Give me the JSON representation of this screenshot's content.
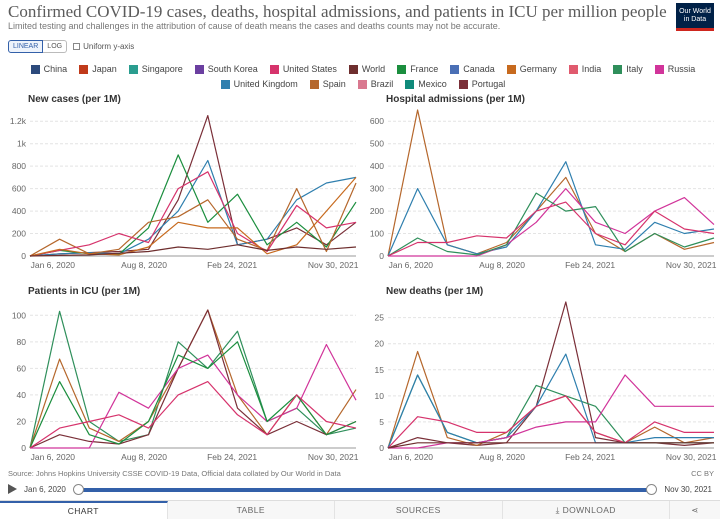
{
  "header": {
    "title": "Confirmed COVID-19 cases, deaths, hospital admissions, and patients in ICU per million people",
    "subtitle": "Limited testing and challenges in the attribution of cause of death means the cases and deaths counts may not be accurate.",
    "logo_line1": "Our World",
    "logo_line2": "in Data"
  },
  "controls": {
    "linear": "LINEAR",
    "log": "LOG",
    "uniform": "Uniform y-axis"
  },
  "colors": {
    "China": "#2c4a7c",
    "Japan": "#c03a1a",
    "Singapore": "#2a9d8f",
    "South Korea": "#6b3fa0",
    "United States": "#d6336c",
    "World": "#6e2e2e",
    "France": "#1b8e3e",
    "Canada": "#4a6fb5",
    "Germany": "#c76a1e",
    "India": "#e05a6e",
    "Italy": "#2f8f5b",
    "Russia": "#d1349a",
    "United Kingdom": "#2f7fae",
    "Spain": "#b5672c",
    "Brazil": "#d9788f",
    "Mexico": "#0f8a7a",
    "Portugal": "#7a2f38"
  },
  "legend": [
    "China",
    "Japan",
    "Singapore",
    "South Korea",
    "United States",
    "World",
    "France",
    "Canada",
    "Germany",
    "India",
    "Italy",
    "Russia",
    "United Kingdom",
    "Spain",
    "Brazil",
    "Mexico",
    "Portugal"
  ],
  "footer": {
    "source": "Source: Johns Hopkins University CSSE COVID-19 Data, Official data collated by Our World in Data",
    "license": "CC BY"
  },
  "timeline": {
    "start": "Jan 6, 2020",
    "end": "Nov 30, 2021"
  },
  "tabs": [
    "CHART",
    "TABLE",
    "SOURCES",
    "DOWNLOAD"
  ],
  "chart_data": [
    {
      "type": "line",
      "title": "New cases (per 1M)",
      "x_ticks": [
        "Jan 6, 2020",
        "Aug 8, 2020",
        "Feb 24, 2021",
        "Nov 30, 2021"
      ],
      "y_ticks": [
        "0",
        "200",
        "400",
        "600",
        "800",
        "1k",
        "1.2k"
      ],
      "ylim": [
        0,
        1300
      ],
      "x": [
        "Jan 6, 2020",
        "Mar 10, 2020",
        "May 15, 2020",
        "Jul 20, 2020",
        "Sep 25, 2020",
        "Dec 1, 2020",
        "Feb 5, 2021",
        "Apr 12, 2021",
        "Jun 18, 2021",
        "Aug 23, 2021",
        "Oct 28, 2021",
        "Nov 30, 2021"
      ],
      "series": [
        {
          "name": "Portugal",
          "values": [
            0,
            20,
            30,
            40,
            60,
            500,
            1250,
            100,
            150,
            250,
            100,
            300
          ]
        },
        {
          "name": "United Kingdom",
          "values": [
            0,
            20,
            30,
            20,
            150,
            400,
            850,
            100,
            150,
            500,
            650,
            700
          ]
        },
        {
          "name": "France",
          "values": [
            0,
            50,
            20,
            15,
            250,
            900,
            300,
            550,
            100,
            300,
            80,
            480
          ]
        },
        {
          "name": "Spain",
          "values": [
            0,
            150,
            20,
            60,
            300,
            350,
            500,
            150,
            50,
            600,
            40,
            650
          ]
        },
        {
          "name": "United States",
          "values": [
            0,
            50,
            100,
            200,
            120,
            600,
            750,
            200,
            40,
            450,
            250,
            300
          ]
        },
        {
          "name": "Germany",
          "values": [
            0,
            60,
            20,
            10,
            80,
            300,
            250,
            250,
            20,
            100,
            400,
            700
          ]
        },
        {
          "name": "World",
          "values": [
            0,
            5,
            10,
            25,
            40,
            80,
            60,
            100,
            50,
            80,
            60,
            80
          ]
        }
      ]
    },
    {
      "type": "line",
      "title": "Hospital admissions (per 1M)",
      "x_ticks": [
        "Jan 6, 2020",
        "Aug 8, 2020",
        "Feb 24, 2021",
        "Nov 30, 2021"
      ],
      "y_ticks": [
        "0",
        "100",
        "200",
        "300",
        "400",
        "500",
        "600"
      ],
      "ylim": [
        0,
        650
      ],
      "x": [
        "Jan 6, 2020",
        "Mar 10, 2020",
        "May 15, 2020",
        "Jul 20, 2020",
        "Sep 25, 2020",
        "Dec 1, 2020",
        "Feb 5, 2021",
        "Apr 12, 2021",
        "Jun 18, 2021",
        "Aug 23, 2021",
        "Oct 28, 2021",
        "Nov 30, 2021"
      ],
      "series": [
        {
          "name": "Spain",
          "values": [
            0,
            650,
            50,
            10,
            60,
            200,
            350,
            100,
            20,
            100,
            30,
            60
          ]
        },
        {
          "name": "United Kingdom",
          "values": [
            0,
            300,
            50,
            10,
            40,
            200,
            420,
            50,
            30,
            150,
            100,
            120
          ]
        },
        {
          "name": "Russia",
          "values": [
            0,
            0,
            0,
            0,
            50,
            150,
            300,
            150,
            100,
            200,
            260,
            140
          ]
        },
        {
          "name": "Italy",
          "values": [
            0,
            80,
            20,
            5,
            50,
            280,
            200,
            220,
            20,
            100,
            40,
            80
          ]
        },
        {
          "name": "United States",
          "values": [
            0,
            60,
            60,
            90,
            80,
            200,
            240,
            100,
            50,
            200,
            120,
            100
          ]
        }
      ]
    },
    {
      "type": "line",
      "title": "Patients in ICU (per 1M)",
      "x_ticks": [
        "Jan 6, 2020",
        "Aug 8, 2020",
        "Feb 24, 2021",
        "Nov 30, 2021"
      ],
      "y_ticks": [
        "0",
        "20",
        "40",
        "60",
        "80",
        "100"
      ],
      "ylim": [
        0,
        110
      ],
      "x": [
        "Jan 6, 2020",
        "Mar 10, 2020",
        "May 15, 2020",
        "Jul 20, 2020",
        "Sep 25, 2020",
        "Dec 1, 2020",
        "Feb 5, 2021",
        "Apr 12, 2021",
        "Jun 18, 2021",
        "Aug 23, 2021",
        "Oct 28, 2021",
        "Nov 30, 2021"
      ],
      "series": [
        {
          "name": "Italy",
          "values": [
            0,
            103,
            20,
            5,
            10,
            80,
            60,
            88,
            20,
            30,
            10,
            15
          ]
        },
        {
          "name": "Spain",
          "values": [
            0,
            67,
            15,
            5,
            20,
            60,
            104,
            40,
            10,
            40,
            10,
            44
          ]
        },
        {
          "name": "Portugal",
          "values": [
            0,
            10,
            5,
            3,
            10,
            60,
            104,
            30,
            10,
            20,
            10,
            20
          ]
        },
        {
          "name": "Russia",
          "values": [
            0,
            0,
            0,
            42,
            30,
            60,
            70,
            40,
            20,
            30,
            78,
            36
          ]
        },
        {
          "name": "France",
          "values": [
            0,
            50,
            10,
            3,
            20,
            70,
            60,
            80,
            20,
            40,
            10,
            20
          ]
        },
        {
          "name": "United States",
          "values": [
            0,
            15,
            20,
            25,
            15,
            40,
            50,
            25,
            10,
            40,
            20,
            15
          ]
        }
      ]
    },
    {
      "type": "line",
      "title": "New deaths (per 1M)",
      "x_ticks": [
        "Jan 6, 2020",
        "Aug 8, 2020",
        "Feb 24, 2021",
        "Nov 30, 2021"
      ],
      "y_ticks": [
        "0",
        "5",
        "10",
        "15",
        "20",
        "25"
      ],
      "ylim": [
        0,
        28
      ],
      "x": [
        "Jan 6, 2020",
        "Mar 10, 2020",
        "May 15, 2020",
        "Jul 20, 2020",
        "Sep 25, 2020",
        "Dec 1, 2020",
        "Feb 5, 2021",
        "Apr 12, 2021",
        "Jun 18, 2021",
        "Aug 23, 2021",
        "Oct 28, 2021",
        "Nov 30, 2021"
      ],
      "series": [
        {
          "name": "Portugal",
          "values": [
            0,
            2,
            1,
            0.5,
            1,
            8,
            28,
            2,
            1,
            1,
            0.5,
            1
          ]
        },
        {
          "name": "Spain",
          "values": [
            0,
            18.5,
            2,
            0.5,
            3,
            8,
            10,
            3,
            1,
            4,
            1,
            2
          ]
        },
        {
          "name": "Italy",
          "values": [
            0,
            14,
            3,
            1,
            2,
            12,
            10,
            8,
            1,
            1,
            1,
            1
          ]
        },
        {
          "name": "United Kingdom",
          "values": [
            0,
            14,
            3,
            1,
            2,
            8,
            18,
            1,
            1,
            2,
            2,
            2
          ]
        },
        {
          "name": "Russia",
          "values": [
            0,
            0,
            1,
            1,
            2,
            4,
            5,
            5,
            14,
            8,
            8,
            8
          ]
        },
        {
          "name": "United States",
          "values": [
            0,
            6,
            5,
            3,
            3,
            8,
            10,
            3,
            1,
            5,
            3,
            3
          ]
        },
        {
          "name": "World",
          "values": [
            0,
            1,
            1,
            1,
            1,
            1,
            1,
            1,
            1,
            1,
            1,
            1
          ]
        }
      ]
    }
  ]
}
